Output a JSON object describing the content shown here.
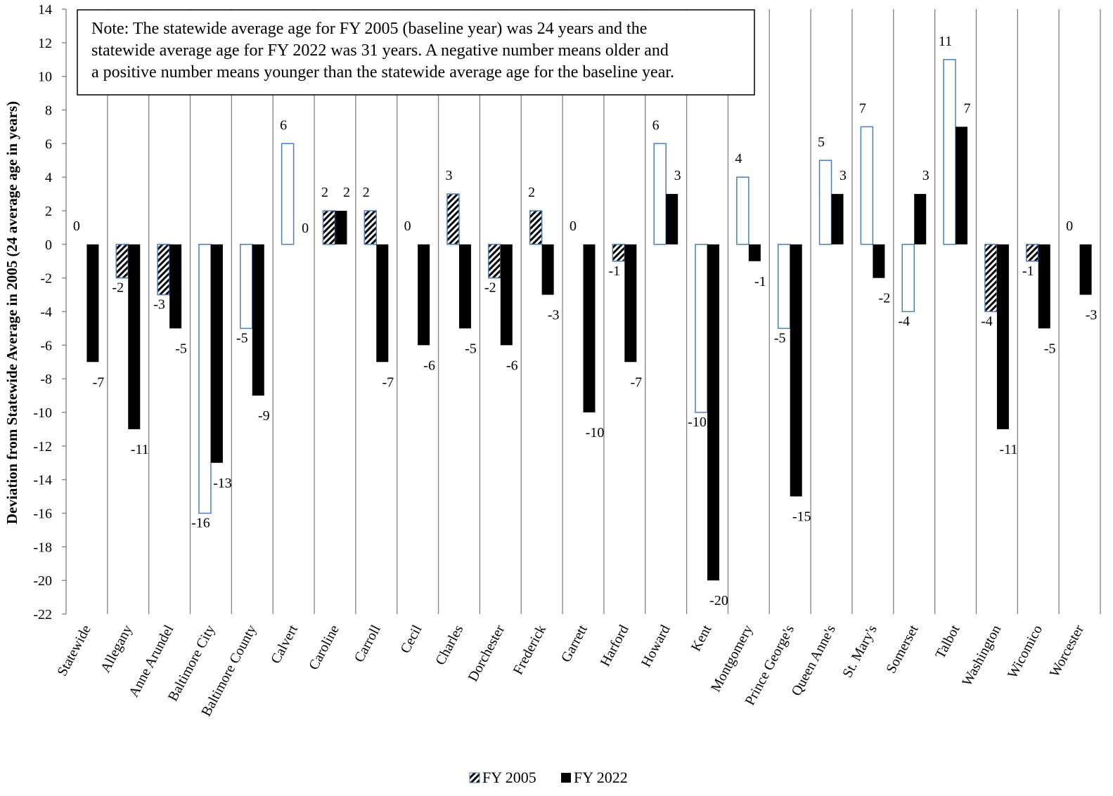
{
  "chart_data": {
    "type": "bar",
    "ylabel": "Deviation from Statewide Average in 2005 (24 average age in years)",
    "xlabel": "",
    "ylim": [
      -22,
      14
    ],
    "ytick_step": 2,
    "yticks": [
      "14",
      "12",
      "10",
      "8",
      "6",
      "4",
      "2",
      "0",
      "-2",
      "-4",
      "-6",
      "-8",
      "-10",
      "-12",
      "-14",
      "-16",
      "-18",
      "-20",
      "-22"
    ],
    "grid": "vertical separators between categories",
    "legend_position": "bottom",
    "categories": [
      "Statewide",
      "Allegany",
      "Anne Arundel",
      "Baltimore City",
      "Baltimore County",
      "Calvert",
      "Caroline",
      "Carroll",
      "Cecil",
      "Charles",
      "Dorchester",
      "Frederick",
      "Garrett",
      "Harford",
      "Howard",
      "Kent",
      "Montgomery",
      "Prince George's",
      "Queen Anne's",
      "St. Mary's",
      "Somerset",
      "Talbot",
      "Washington",
      "Wicomico",
      "Worcester"
    ],
    "series": [
      {
        "name": "FY 2005",
        "values": [
          0,
          -2,
          -3,
          -16,
          -5,
          6,
          2,
          2,
          0,
          3,
          -2,
          2,
          0,
          -1,
          6,
          -10,
          4,
          -5,
          5,
          7,
          -4,
          11,
          -4,
          -1,
          0
        ],
        "labels": [
          "0",
          "-2",
          "-3",
          "-16",
          "-5",
          "6",
          "2",
          "2",
          "0",
          "3",
          "-2",
          "2",
          "0",
          "-1",
          "6",
          "-10",
          "4",
          "-5",
          "5",
          "7",
          "-4",
          "11",
          "-4",
          "-1",
          "0"
        ]
      },
      {
        "name": "FY 2022",
        "values": [
          -7,
          -11,
          -5,
          -13,
          -9,
          0,
          2,
          -7,
          -6,
          -5,
          -6,
          -3,
          -10,
          -7,
          3,
          -20,
          -1,
          -15,
          3,
          -2,
          3,
          7,
          -11,
          -5,
          -3
        ],
        "labels": [
          "-7",
          "-11",
          "-5",
          "-13",
          "-9",
          "0",
          "2",
          "-7",
          "-6",
          "-5",
          "-6",
          "-3",
          "-10",
          "-7",
          "3",
          "-20",
          "-1",
          "-15",
          "3",
          "-2",
          "3",
          "7",
          "-11",
          "-5",
          "-3"
        ]
      }
    ],
    "fy2005_hatched_categories": [
      "Allegany",
      "Anne Arundel",
      "Caroline",
      "Carroll",
      "Charles",
      "Dorchester",
      "Frederick",
      "Harford",
      "Washington",
      "Wicomico"
    ],
    "colors": {
      "fy2005_fill": "#ffffff",
      "fy2005_outline": "#4a7ebb",
      "fy2005_hatch": "#000000",
      "fy2022_fill": "#000000",
      "axis": "#808080",
      "separator": "#808080"
    },
    "annotation": "Note: The statewide average age for FY 2005 (baseline year) was 24 years and the statewide average age for FY 2022 was 31 years. A negative number means older and a positive number means younger than the statewide average age for the baseline year.",
    "annotation_lines": [
      "Note: The statewide average age for FY 2005 (baseline year) was 24 years and the",
      "statewide average age for FY 2022 was 31 years. A negative number means older and",
      "a positive number means younger than the statewide average age for the baseline year."
    ],
    "legend": [
      {
        "label": "FY 2005",
        "swatch": "hatched"
      },
      {
        "label": "FY 2022",
        "swatch": "solid"
      }
    ]
  }
}
